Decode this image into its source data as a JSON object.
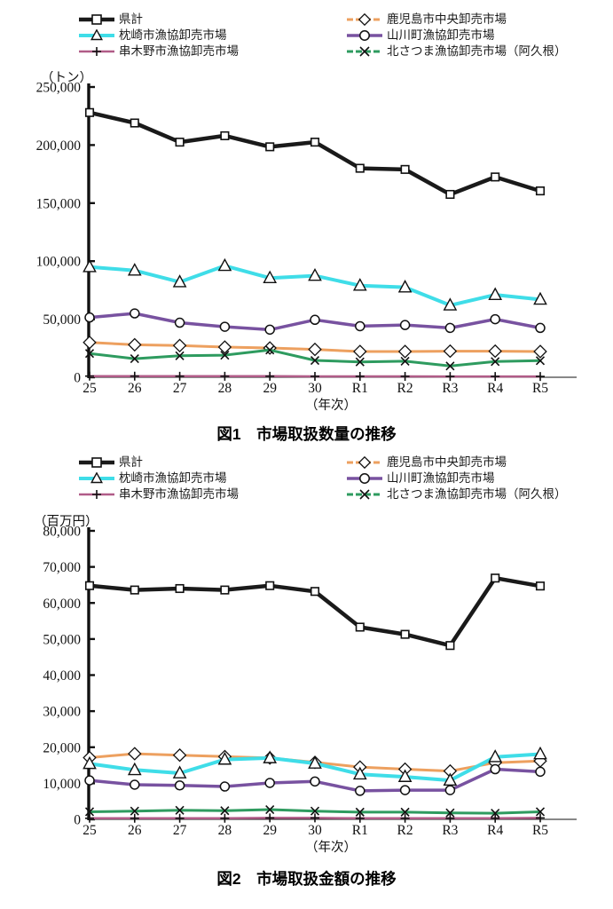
{
  "series_meta": [
    {
      "key": "kenkei",
      "label": "県計",
      "color": "#1a1a1a",
      "marker": "square",
      "line_width": 4.5,
      "legend_dash": ""
    },
    {
      "key": "kagoshima",
      "label": "鹿児島市中央卸売市場",
      "color": "#EDA05F",
      "marker": "diamond",
      "line_width": 3,
      "legend_dash": "7,3"
    },
    {
      "key": "makurazaki",
      "label": "枕崎市漁協卸売市場",
      "color": "#3FDDE8",
      "marker": "triangle",
      "line_width": 4,
      "legend_dash": ""
    },
    {
      "key": "yamakawa",
      "label": "山川町漁協卸売市場",
      "color": "#7852A0",
      "marker": "circle",
      "line_width": 3.5,
      "legend_dash": ""
    },
    {
      "key": "kushikino",
      "label": "串木野市漁協卸売市場",
      "color": "#B15C88",
      "marker": "plus",
      "line_width": 2.5,
      "legend_dash": ""
    },
    {
      "key": "kitasatsuma",
      "label": "北さつま漁協卸売市場（阿久根）",
      "color": "#2E9B5F",
      "marker": "x",
      "line_width": 3,
      "legend_dash": "7,3"
    }
  ],
  "chart_data": [
    {
      "id": "fig1",
      "type": "line",
      "title": "図1　市場取扱数量の推移",
      "unit_label": "（トン）",
      "xlabel": "（年次）",
      "categories": [
        "25",
        "26",
        "27",
        "28",
        "29",
        "30",
        "R1",
        "R2",
        "R3",
        "R4",
        "R5"
      ],
      "ylim": [
        0,
        250000
      ],
      "ytick_step": 50000,
      "ytick_labels": [
        "0",
        "50,000",
        "100,000",
        "150,000",
        "200,000",
        "250,000"
      ],
      "grid": false,
      "legend_position": "top",
      "series": [
        {
          "name": "県計",
          "values": [
            228000,
            219000,
            202500,
            208000,
            198500,
            202500,
            180000,
            179000,
            157500,
            172500,
            160500
          ]
        },
        {
          "name": "鹿児島市中央卸売市場",
          "values": [
            30000,
            28000,
            27300,
            26000,
            25200,
            24000,
            22200,
            22200,
            22500,
            22500,
            22200
          ]
        },
        {
          "name": "枕崎市漁協卸売市場",
          "values": [
            95000,
            92000,
            82000,
            96000,
            85500,
            87500,
            79000,
            77500,
            62000,
            71000,
            67000
          ]
        },
        {
          "name": "山川町漁協卸売市場",
          "values": [
            51500,
            55000,
            47000,
            43500,
            41000,
            49500,
            44000,
            45000,
            42500,
            50000,
            42500
          ]
        },
        {
          "name": "串木野市漁協卸売市場",
          "values": [
            1000,
            1000,
            900,
            900,
            900,
            800,
            800,
            800,
            700,
            700,
            700
          ]
        },
        {
          "name": "北さつま漁協卸売市場（阿久根）",
          "values": [
            20500,
            16000,
            18500,
            19000,
            23500,
            14500,
            13200,
            13800,
            9700,
            13500,
            14300
          ]
        }
      ]
    },
    {
      "id": "fig2",
      "type": "line",
      "title": "図2　市場取扱金額の推移",
      "unit_label": "（百万円）",
      "xlabel": "（年次）",
      "categories": [
        "25",
        "26",
        "27",
        "28",
        "29",
        "30",
        "R1",
        "R2",
        "R3",
        "R4",
        "R5"
      ],
      "ylim": [
        0,
        80000
      ],
      "ytick_step": 10000,
      "ytick_labels": [
        "0",
        "10,000",
        "20,000",
        "30,000",
        "40,000",
        "50,000",
        "60,000",
        "70,000",
        "80,000"
      ],
      "grid": false,
      "legend_position": "top",
      "series": [
        {
          "name": "県計",
          "values": [
            64800,
            63600,
            64000,
            63600,
            64800,
            63200,
            53300,
            51300,
            48200,
            66900,
            64700
          ]
        },
        {
          "name": "鹿児島市中央卸売市場",
          "values": [
            17100,
            18200,
            17800,
            17400,
            17000,
            15800,
            14500,
            13900,
            13400,
            15700,
            16200
          ]
        },
        {
          "name": "枕崎市漁協卸売市場",
          "values": [
            15400,
            13700,
            12800,
            16600,
            17000,
            15500,
            12500,
            11800,
            10800,
            17300,
            18100
          ]
        },
        {
          "name": "山川町漁協卸売市場",
          "values": [
            10800,
            9600,
            9400,
            9100,
            10100,
            10500,
            7900,
            8100,
            8100,
            13900,
            13200
          ]
        },
        {
          "name": "串木野市漁協卸売市場",
          "values": [
            300,
            300,
            300,
            300,
            400,
            400,
            300,
            300,
            300,
            300,
            400
          ]
        },
        {
          "name": "北さつま漁協卸売市場（阿久根）",
          "values": [
            2100,
            2300,
            2500,
            2400,
            2700,
            2300,
            2000,
            2000,
            1800,
            1700,
            2100
          ]
        }
      ]
    }
  ]
}
